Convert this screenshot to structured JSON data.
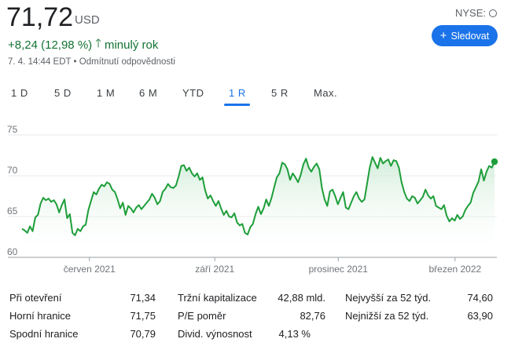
{
  "quote": {
    "price": "71,72",
    "currency": "USD",
    "change": "+8,24 (12,98 %)",
    "arrow": "🡑",
    "period": "minulý rok",
    "timestamp": "7. 4. 14:44 EDT",
    "separator": "•",
    "disclaimer": "Odmítnutí odpovědnosti",
    "exchange": "NYSE:"
  },
  "follow_button": {
    "plus": "+",
    "label": "Sledovat"
  },
  "tabs": [
    {
      "label": "1 D"
    },
    {
      "label": "5 D"
    },
    {
      "label": "1 M"
    },
    {
      "label": "6 M"
    },
    {
      "label": "YTD"
    },
    {
      "label": "1 R",
      "active": true
    },
    {
      "label": "5 R"
    },
    {
      "label": "Max."
    }
  ],
  "colors": {
    "accent": "#1a73e8",
    "positive": "#137333",
    "line": "#1e9e3a",
    "fill": "#e6f4ea"
  },
  "chart_data": {
    "type": "area",
    "ylim": [
      60,
      75
    ],
    "yticks": [
      "75",
      "70",
      "65",
      "60"
    ],
    "ytick_values": [
      75,
      70,
      65,
      60
    ],
    "xticks": [
      {
        "label": "červen 2021",
        "t": 0.142
      },
      {
        "label": "září 2021",
        "t": 0.406
      },
      {
        "label": "prosinec 2021",
        "t": 0.666
      },
      {
        "label": "březen 2022",
        "t": 0.912
      }
    ],
    "previous_close_dashed": false,
    "last_value": 71.72,
    "series": [
      {
        "values": [
          63.5,
          63.3,
          63.0,
          63.8,
          63.2,
          64.9,
          65.2,
          66.6,
          67.3,
          67.0,
          67.2,
          66.8,
          67.0,
          66.5,
          65.5,
          66.4,
          67.1,
          64.8,
          65.3,
          63.0,
          62.7,
          63.5,
          63.2,
          63.8,
          64.0,
          65.8,
          66.9,
          68.0,
          67.7,
          68.4,
          68.9,
          68.7,
          69.2,
          69.0,
          68.3,
          68.0,
          67.1,
          66.0,
          66.7,
          65.2,
          66.3,
          66.0,
          65.5,
          66.1,
          66.4,
          65.9,
          66.3,
          66.7,
          67.1,
          67.8,
          67.3,
          66.5,
          66.9,
          68.0,
          68.4,
          69.0,
          68.6,
          68.5,
          68.8,
          69.9,
          71.2,
          71.3,
          70.6,
          71.0,
          70.3,
          69.9,
          70.3,
          69.5,
          69.8,
          68.2,
          67.2,
          67.6,
          66.9,
          66.3,
          66.9,
          66.0,
          65.2,
          65.7,
          65.0,
          64.9,
          65.4,
          64.3,
          63.9,
          64.1,
          63.0,
          62.8,
          63.7,
          64.1,
          65.3,
          66.2,
          65.3,
          66.0,
          67.1,
          66.3,
          67.3,
          68.6,
          69.8,
          70.3,
          71.6,
          71.4,
          70.8,
          69.5,
          70.3,
          69.8,
          69.2,
          70.1,
          71.4,
          72.1,
          71.0,
          70.5,
          71.1,
          71.5,
          70.8,
          68.5,
          67.1,
          66.3,
          68.1,
          68.3,
          67.5,
          66.5,
          67.3,
          68.0,
          66.1,
          65.9,
          66.7,
          67.5,
          68.0,
          67.2,
          66.8,
          67.1,
          69.0,
          71.0,
          72.3,
          71.6,
          70.9,
          72.2,
          71.5,
          71.8,
          72.0,
          71.2,
          71.9,
          71.8,
          71.0,
          69.2,
          68.0,
          67.2,
          66.9,
          67.5,
          67.3,
          66.6,
          67.0,
          67.4,
          68.3,
          67.6,
          67.2,
          67.5,
          66.3,
          66.1,
          65.9,
          66.4,
          65.1,
          64.4,
          64.8,
          64.5,
          65.2,
          64.7,
          65.0,
          65.8,
          66.3,
          66.7,
          67.9,
          68.6,
          69.3,
          70.8,
          69.4,
          70.5,
          71.2,
          71.0,
          71.72
        ]
      }
    ]
  },
  "stats": [
    {
      "label": "Při otevření",
      "value": "71,34"
    },
    {
      "label": "Horní hranice",
      "value": "71,75"
    },
    {
      "label": "Spodní hranice",
      "value": "70,79"
    },
    {
      "label": "Tržní kapitalizace",
      "value": "42,88 mld."
    },
    {
      "label": "P/E poměr",
      "value": "82,76"
    },
    {
      "label": "Divid. výnosnost",
      "value": "4,13 %"
    },
    {
      "label": "Nejvyšší za 52 týd.",
      "value": "74,60"
    },
    {
      "label": "Nejnižší za 52 týd.",
      "value": "63,90"
    }
  ]
}
